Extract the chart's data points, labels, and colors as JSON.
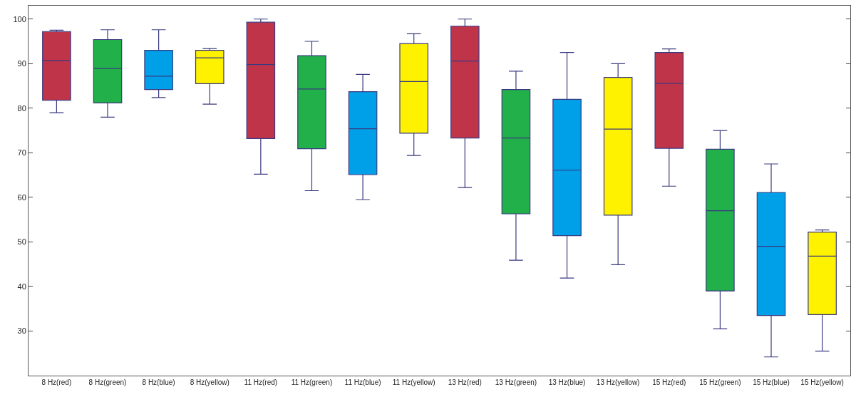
{
  "chart_data": {
    "type": "box",
    "categories": [
      "8 Hz(red)",
      "8 Hz(green)",
      "8 Hz(blue)",
      "8 Hz(yellow)",
      "11 Hz(red)",
      "11 Hz(green)",
      "11 Hz(blue)",
      "11 Hz(yellow)",
      "13 Hz(red)",
      "13 Hz(green)",
      "13 Hz(blue)",
      "13 Hz(yellow)",
      "15 Hz(red)",
      "15 Hz(green)",
      "15 Hz(blue)",
      "15 Hz(yellow)"
    ],
    "boxes": [
      {
        "low": 79,
        "q1": 81.8,
        "median": 90.7,
        "q3": 97.2,
        "high": 97.5
      },
      {
        "low": 78,
        "q1": 81.2,
        "median": 88.9,
        "q3": 95.4,
        "high": 97.6
      },
      {
        "low": 82.4,
        "q1": 84.2,
        "median": 87.2,
        "q3": 93,
        "high": 97.6
      },
      {
        "low": 80.9,
        "q1": 85.5,
        "median": 91.3,
        "q3": 93,
        "high": 93.4
      },
      {
        "low": 65.2,
        "q1": 73.2,
        "median": 89.8,
        "q3": 99.3,
        "high": 100
      },
      {
        "low": 61.5,
        "q1": 70.9,
        "median": 84.3,
        "q3": 91.8,
        "high": 95
      },
      {
        "low": 59.5,
        "q1": 65.1,
        "median": 75.4,
        "q3": 83.7,
        "high": 87.6
      },
      {
        "low": 69.4,
        "q1": 74.4,
        "median": 86,
        "q3": 94.5,
        "high": 96.7
      },
      {
        "low": 62.2,
        "q1": 73.3,
        "median": 90.6,
        "q3": 98.4,
        "high": 100
      },
      {
        "low": 45.9,
        "q1": 56.3,
        "median": 73.3,
        "q3": 84.2,
        "high": 88.3
      },
      {
        "low": 41.9,
        "q1": 51.4,
        "median": 66.1,
        "q3": 82,
        "high": 92.5
      },
      {
        "low": 44.9,
        "q1": 56,
        "median": 75.3,
        "q3": 86.9,
        "high": 90
      },
      {
        "low": 62.5,
        "q1": 71,
        "median": 85.6,
        "q3": 92.5,
        "high": 93.3
      },
      {
        "low": 30.5,
        "q1": 39,
        "median": 57,
        "q3": 70.8,
        "high": 75
      },
      {
        "low": 24.2,
        "q1": 33.5,
        "median": 49,
        "q3": 61.1,
        "high": 67.5
      },
      {
        "low": 25.5,
        "q1": 33.7,
        "median": 46.8,
        "q3": 52.2,
        "high": 52.7
      }
    ],
    "colors": [
      "#c0344a",
      "#22b04a",
      "#00a0e8",
      "#fff200",
      "#c0344a",
      "#22b04a",
      "#00a0e8",
      "#fff200",
      "#c0344a",
      "#22b04a",
      "#00a0e8",
      "#fff200",
      "#c0344a",
      "#22b04a",
      "#00a0e8",
      "#fff200"
    ],
    "ylim": [
      20,
      103
    ],
    "yticks": [
      30,
      40,
      50,
      60,
      70,
      80,
      90,
      100
    ]
  }
}
